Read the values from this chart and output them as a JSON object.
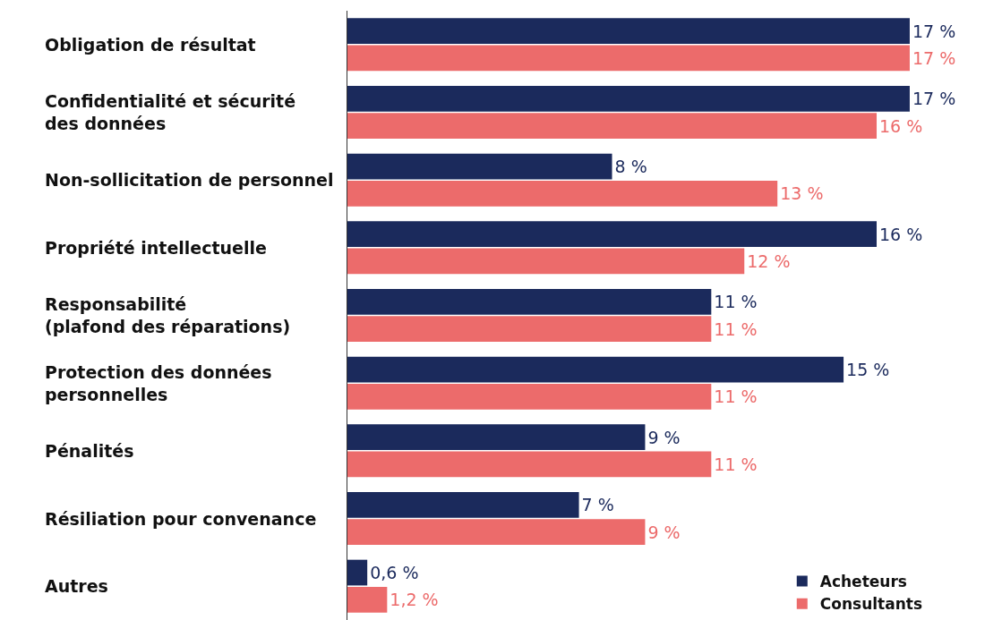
{
  "chart_data": {
    "type": "bar",
    "orientation": "horizontal",
    "categories": [
      "Obligation de résultat",
      "Confidentialité et sécurité\ndes données",
      "Non-sollicitation de personnel",
      "Propriété intellectuelle",
      "Responsabilité\n(plafond des réparations)",
      "Protection des données\npersonnelles",
      "Pénalités",
      "Résiliation pour convenance",
      "Autres"
    ],
    "series": [
      {
        "name": "Acheteurs",
        "color": "#1b2a5c",
        "values": [
          17,
          17,
          8,
          16,
          11,
          15,
          9,
          7,
          0.6
        ],
        "value_labels": [
          "17 %",
          "17 %",
          "8 %",
          "16 %",
          "11 %",
          "15 %",
          "9 %",
          "7 %",
          "0,6 %"
        ]
      },
      {
        "name": "Consultants",
        "color": "#ec6b6b",
        "values": [
          17,
          16,
          13,
          12,
          11,
          11,
          11,
          9,
          1.2
        ],
        "value_labels": [
          "17 %",
          "16 %",
          "13 %",
          "12 %",
          "11 %",
          "11 %",
          "11 %",
          "9 %",
          "1,2 %"
        ]
      }
    ],
    "legend": "bottom right"
  }
}
